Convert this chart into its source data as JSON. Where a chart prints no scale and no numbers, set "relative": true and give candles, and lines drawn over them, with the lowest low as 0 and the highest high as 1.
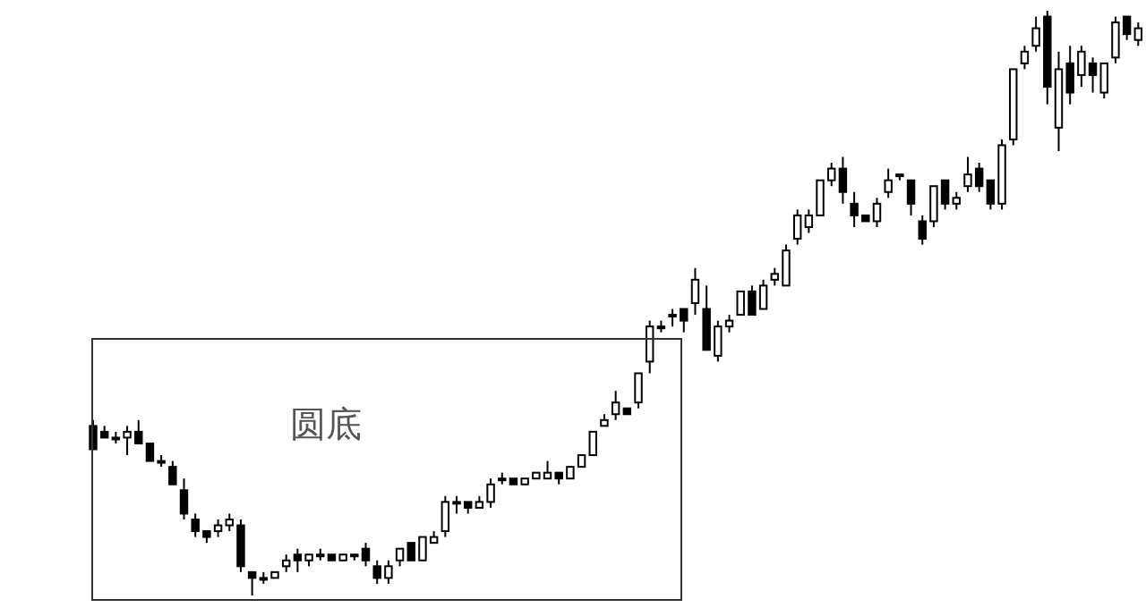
{
  "chart_data": {
    "type": "candlestick",
    "relative": true,
    "annotations": [
      "圆底"
    ],
    "categories": [
      null,
      null,
      null,
      null,
      null,
      null,
      null,
      null,
      null,
      null,
      null,
      null,
      null,
      null,
      null,
      null,
      null,
      null,
      null,
      null,
      null,
      null,
      null,
      null,
      null,
      null,
      null,
      null,
      null,
      null,
      null,
      null,
      null,
      null,
      null,
      null,
      null,
      null,
      null,
      null,
      null,
      null,
      null,
      null,
      null,
      null,
      null,
      null,
      null,
      null,
      null,
      null,
      null,
      null,
      null,
      null,
      null,
      null,
      null,
      null,
      null,
      null,
      null,
      null,
      null,
      null,
      null,
      null,
      null,
      null,
      null,
      null,
      null,
      null,
      null,
      null,
      null,
      null,
      null,
      null,
      null,
      null,
      null,
      null,
      null,
      null,
      null,
      null,
      null,
      null,
      null,
      null,
      null
    ],
    "ohlc": [
      [
        0.29,
        0.3,
        0.25,
        0.25
      ],
      [
        0.28,
        0.29,
        0.27,
        0.27
      ],
      [
        0.27,
        0.28,
        0.26,
        0.27
      ],
      [
        0.27,
        0.29,
        0.24,
        0.28
      ],
      [
        0.28,
        0.3,
        0.26,
        0.26
      ],
      [
        0.26,
        0.26,
        0.23,
        0.23
      ],
      [
        0.23,
        0.24,
        0.22,
        0.23
      ],
      [
        0.22,
        0.23,
        0.19,
        0.19
      ],
      [
        0.18,
        0.2,
        0.13,
        0.14
      ],
      [
        0.13,
        0.14,
        0.1,
        0.11
      ],
      [
        0.11,
        0.11,
        0.09,
        0.1
      ],
      [
        0.11,
        0.13,
        0.1,
        0.12
      ],
      [
        0.12,
        0.14,
        0.11,
        0.13
      ],
      [
        0.12,
        0.13,
        0.04,
        0.05
      ],
      [
        0.04,
        0.04,
        0,
        0.03
      ],
      [
        0.03,
        0.04,
        0.02,
        0.03
      ],
      [
        0.03,
        0.04,
        0.03,
        0.04
      ],
      [
        0.05,
        0.07,
        0.04,
        0.06
      ],
      [
        0.07,
        0.08,
        0.04,
        0.06
      ],
      [
        0.06,
        0.07,
        0.05,
        0.07
      ],
      [
        0.07,
        0.08,
        0.06,
        0.07
      ],
      [
        0.07,
        0.07,
        0.06,
        0.06
      ],
      [
        0.06,
        0.07,
        0.06,
        0.07
      ],
      [
        0.07,
        0.07,
        0.06,
        0.07
      ],
      [
        0.08,
        0.09,
        0.05,
        0.06
      ],
      [
        0.05,
        0.06,
        0.02,
        0.03
      ],
      [
        0.03,
        0.06,
        0.02,
        0.05
      ],
      [
        0.06,
        0.08,
        0.05,
        0.08
      ],
      [
        0.09,
        0.09,
        0.06,
        0.06
      ],
      [
        0.06,
        0.1,
        0.06,
        0.1
      ],
      [
        0.09,
        0.11,
        0.09,
        0.1
      ],
      [
        0.11,
        0.17,
        0.1,
        0.16
      ],
      [
        0.16,
        0.17,
        0.14,
        0.16
      ],
      [
        0.16,
        0.16,
        0.14,
        0.15
      ],
      [
        0.15,
        0.17,
        0.15,
        0.16
      ],
      [
        0.16,
        0.2,
        0.15,
        0.19
      ],
      [
        0.2,
        0.21,
        0.19,
        0.2
      ],
      [
        0.2,
        0.2,
        0.19,
        0.19
      ],
      [
        0.19,
        0.2,
        0.19,
        0.2
      ],
      [
        0.2,
        0.21,
        0.2,
        0.21
      ],
      [
        0.2,
        0.23,
        0.2,
        0.21
      ],
      [
        0.21,
        0.21,
        0.19,
        0.2
      ],
      [
        0.2,
        0.22,
        0.2,
        0.22
      ],
      [
        0.22,
        0.24,
        0.22,
        0.24
      ],
      [
        0.24,
        0.28,
        0.24,
        0.28
      ],
      [
        0.29,
        0.31,
        0.29,
        0.3
      ],
      [
        0.31,
        0.35,
        0.3,
        0.33
      ],
      [
        0.32,
        0.32,
        0.31,
        0.31
      ],
      [
        0.33,
        0.38,
        0.32,
        0.38
      ],
      [
        0.4,
        0.47,
        0.38,
        0.46
      ],
      [
        0.46,
        0.47,
        0.45,
        0.46
      ],
      [
        0.48,
        0.49,
        0.46,
        0.48
      ],
      [
        0.49,
        0.49,
        0.45,
        0.47
      ],
      [
        0.5,
        0.56,
        0.48,
        0.54
      ],
      [
        0.49,
        0.53,
        0.42,
        0.42
      ],
      [
        0.41,
        0.47,
        0.4,
        0.46
      ],
      [
        0.46,
        0.48,
        0.45,
        0.47
      ],
      [
        0.48,
        0.52,
        0.48,
        0.52
      ],
      [
        0.52,
        0.53,
        0.48,
        0.48
      ],
      [
        0.49,
        0.54,
        0.49,
        0.53
      ],
      [
        0.54,
        0.56,
        0.53,
        0.55
      ],
      [
        0.53,
        0.6,
        0.53,
        0.59
      ],
      [
        0.61,
        0.66,
        0.6,
        0.65
      ],
      [
        0.63,
        0.66,
        0.62,
        0.65
      ],
      [
        0.65,
        0.71,
        0.65,
        0.71
      ],
      [
        0.71,
        0.74,
        0.7,
        0.73
      ],
      [
        0.73,
        0.75,
        0.67,
        0.69
      ],
      [
        0.67,
        0.69,
        0.63,
        0.65
      ],
      [
        0.65,
        0.65,
        0.64,
        0.64
      ],
      [
        0.64,
        0.68,
        0.63,
        0.67
      ],
      [
        0.69,
        0.73,
        0.68,
        0.71
      ],
      [
        0.72,
        0.72,
        0.71,
        0.72
      ],
      [
        0.71,
        0.71,
        0.65,
        0.67
      ],
      [
        0.64,
        0.65,
        0.6,
        0.61
      ],
      [
        0.64,
        0.7,
        0.63,
        0.7
      ],
      [
        0.71,
        0.71,
        0.66,
        0.67
      ],
      [
        0.67,
        0.69,
        0.66,
        0.68
      ],
      [
        0.7,
        0.75,
        0.69,
        0.72
      ],
      [
        0.73,
        0.74,
        0.69,
        0.7
      ],
      [
        0.71,
        0.71,
        0.66,
        0.67
      ],
      [
        0.67,
        0.78,
        0.66,
        0.77
      ],
      [
        0.78,
        0.9,
        0.77,
        0.9
      ],
      [
        0.91,
        0.94,
        0.9,
        0.93
      ],
      [
        0.94,
        0.99,
        0.93,
        0.97
      ],
      [
        0.99,
        1,
        0.84,
        0.87
      ],
      [
        0.8,
        0.93,
        0.76,
        0.9
      ],
      [
        0.91,
        0.94,
        0.84,
        0.86
      ],
      [
        0.89,
        0.94,
        0.87,
        0.93
      ],
      [
        0.91,
        0.92,
        0.86,
        0.89
      ],
      [
        0.86,
        0.91,
        0.85,
        0.91
      ],
      [
        0.92,
        0.99,
        0.91,
        0.98
      ],
      [
        0.99,
        0.99,
        0.95,
        0.96
      ],
      [
        0.95,
        0.98,
        0.94,
        0.97
      ]
    ]
  }
}
